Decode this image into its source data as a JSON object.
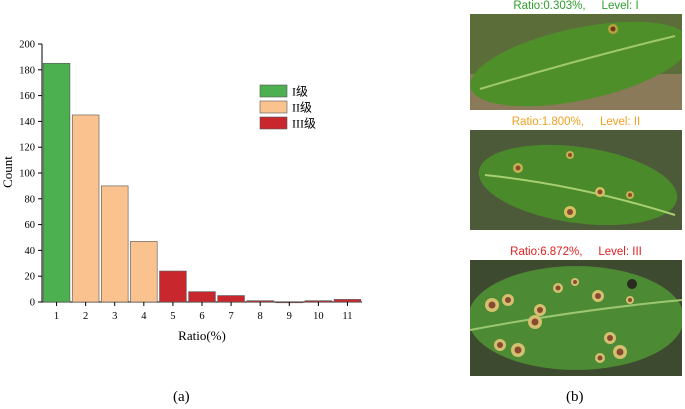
{
  "chart_data": {
    "type": "bar",
    "categories": [
      "1",
      "2",
      "3",
      "4",
      "5",
      "6",
      "7",
      "8",
      "9",
      "10",
      "11"
    ],
    "values": [
      185,
      145,
      90,
      47,
      24,
      8,
      5,
      1,
      0,
      1,
      2
    ],
    "levels": [
      "I",
      "II",
      "II",
      "II",
      "III",
      "III",
      "III",
      "III",
      "III",
      "III",
      "III"
    ],
    "level_colors": {
      "I": "#4caf50",
      "II": "#f9c28e",
      "III": "#c8282d"
    },
    "xlabel": "Ratio(%)",
    "ylabel": "Count",
    "ylim": [
      0,
      200
    ],
    "yticks": [
      0,
      20,
      40,
      60,
      80,
      100,
      120,
      140,
      160,
      180,
      200
    ],
    "legend": [
      {
        "level": "I",
        "label": "I级"
      },
      {
        "level": "II",
        "label": "II级"
      },
      {
        "level": "III",
        "label": "III级"
      }
    ],
    "legend_position": "upper-right",
    "grid": false
  },
  "panel_a_label": "(a)",
  "panel_b_label": "(b)",
  "leaves": [
    {
      "caption": "Ratio:0.303%,     Level: I",
      "color": "#2e9e2e",
      "spots": "few"
    },
    {
      "caption": "Ratio:1.800%,     Level: II",
      "color": "#f0a020",
      "spots": "medium"
    },
    {
      "caption": "Ratio:6.872%,     Level: III",
      "color": "#e02020",
      "spots": "many"
    }
  ]
}
